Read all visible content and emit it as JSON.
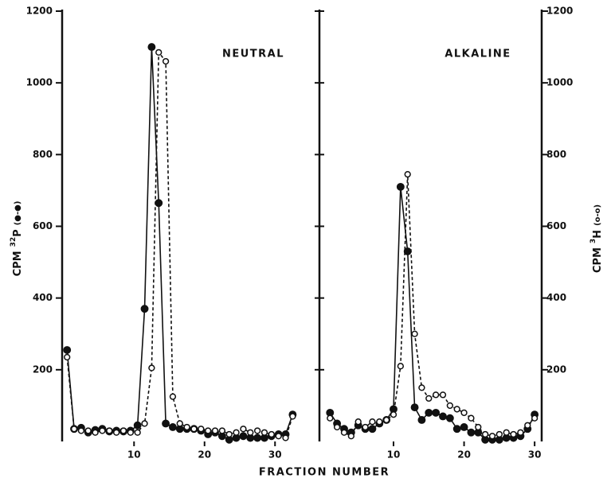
{
  "xlabel": "FRACTION NUMBER",
  "chart_data": [
    {
      "type": "line",
      "title": "NEUTRAL",
      "ylabel": {
        "prefix": "CPM",
        "mass": "32",
        "element": "P",
        "symbol": "(●-●)"
      },
      "x": [
        0.5,
        1.5,
        2.5,
        3.5,
        4.5,
        5.5,
        6.5,
        7.5,
        8.5,
        9.5,
        10.5,
        11.5,
        12.5,
        13.5,
        14.5,
        15.5,
        16.5,
        17.5,
        18.5,
        19.5,
        20.5,
        21.5,
        22.5,
        23.5,
        24.5,
        25.5,
        26.5,
        27.5,
        28.5,
        29.5,
        30.5,
        31.5,
        32.5
      ],
      "xlim": [
        -0.2,
        36.3
      ],
      "xticks": [
        10,
        20,
        30
      ],
      "ylim": [
        0,
        1200
      ],
      "yticks": [
        200,
        400,
        600,
        800,
        1000,
        1200
      ],
      "series": [
        {
          "color": "#111111",
          "marker": "filled",
          "dashed": false,
          "values": [
            255,
            35,
            38,
            25,
            32,
            35,
            28,
            30,
            28,
            30,
            45,
            370,
            1100,
            665,
            50,
            40,
            35,
            35,
            35,
            30,
            20,
            25,
            15,
            5,
            10,
            15,
            10,
            10,
            10,
            15,
            20,
            20,
            75
          ]
        },
        {
          "color": "#111111",
          "marker": "open",
          "dashed": true,
          "values": [
            235,
            35,
            30,
            30,
            25,
            30,
            30,
            25,
            30,
            25,
            25,
            50,
            205,
            1085,
            1060,
            125,
            50,
            40,
            35,
            35,
            30,
            30,
            30,
            20,
            25,
            35,
            25,
            30,
            25,
            20,
            15,
            10,
            70
          ]
        }
      ]
    },
    {
      "type": "line",
      "title": "ALKALINE",
      "y2label": {
        "prefix": "CPM",
        "mass": "3",
        "element": "H",
        "symbol": "(o-o)"
      },
      "x": [
        1,
        2,
        3,
        4,
        5,
        6,
        7,
        8,
        9,
        10,
        11,
        12,
        13,
        14,
        15,
        16,
        17,
        18,
        19,
        20,
        21,
        22,
        23,
        24,
        25,
        26,
        27,
        28,
        29,
        30
      ],
      "xlim": [
        -0.5,
        31
      ],
      "xticks": [
        10,
        20,
        30
      ],
      "ylim": [
        0,
        1200
      ],
      "y2lim": [
        0,
        1200
      ],
      "y2ticks": [
        200,
        400,
        600,
        800,
        1000,
        1200
      ],
      "series": [
        {
          "color": "#111111",
          "marker": "filled",
          "dashed": false,
          "values": [
            80,
            50,
            35,
            25,
            45,
            35,
            35,
            50,
            60,
            90,
            710,
            530,
            95,
            60,
            80,
            80,
            70,
            65,
            35,
            40,
            25,
            25,
            5,
            5,
            5,
            10,
            10,
            15,
            35,
            75
          ]
        },
        {
          "color": "#111111",
          "marker": "open",
          "dashed": true,
          "axis": "y2",
          "values": [
            65,
            40,
            25,
            15,
            55,
            40,
            55,
            55,
            60,
            75,
            210,
            745,
            300,
            150,
            120,
            130,
            130,
            100,
            90,
            80,
            65,
            40,
            20,
            15,
            20,
            25,
            20,
            25,
            45,
            65
          ]
        }
      ]
    }
  ]
}
